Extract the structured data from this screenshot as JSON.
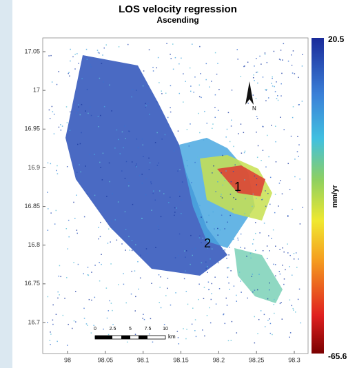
{
  "title": "LOS velocity regression",
  "subtitle": "Ascending",
  "colorbar": {
    "max": "20.5",
    "min": "-65.6",
    "unit": "mm/yr"
  },
  "x_ticks": [
    "98",
    "98.05",
    "98.1",
    "98.15",
    "98.2",
    "98.25",
    "98.3"
  ],
  "y_ticks": [
    "17.05",
    "17",
    "16.95",
    "16.9",
    "16.85",
    "16.8",
    "16.75",
    "16.7"
  ],
  "scale_bar": {
    "labels": [
      "0",
      "2.5",
      "5",
      "7.5",
      "10"
    ],
    "unit": "km"
  },
  "north": "N",
  "annotations": [
    "1",
    "2"
  ]
}
